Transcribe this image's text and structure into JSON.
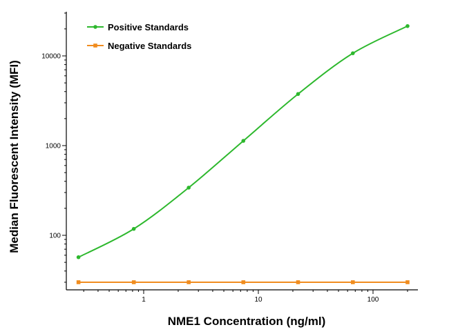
{
  "chart_data": {
    "type": "line",
    "title": "",
    "xlabel": "NME1 Concentration (ng/ml)",
    "ylabel": "Median Fluorescent Intensity (MFI)",
    "xscale": "log",
    "yscale": "log",
    "xlim": [
      0.2,
      300
    ],
    "ylim": [
      20,
      30000
    ],
    "x_tick_labels": [
      "1",
      "10",
      "100"
    ],
    "x_ticks": [
      1,
      10,
      100
    ],
    "y_tick_labels": [
      "100",
      "1000",
      "10000"
    ],
    "y_ticks": [
      100,
      1000,
      10000
    ],
    "grid": false,
    "legend_position": "top-left",
    "series": [
      {
        "name": "Positive Standards",
        "color": "#2db82d",
        "marker": "circle",
        "x": [
          0.27,
          0.82,
          2.47,
          7.4,
          22.2,
          66.7,
          200
        ],
        "y": [
          57,
          118,
          340,
          1130,
          3760,
          10700,
          21500
        ]
      },
      {
        "name": "Negative Standards",
        "color": "#f08c1e",
        "marker": "square",
        "x": [
          0.27,
          0.82,
          2.47,
          7.4,
          22.2,
          66.7,
          200
        ],
        "y": [
          30,
          30,
          30,
          30,
          30,
          30,
          30
        ]
      }
    ]
  }
}
